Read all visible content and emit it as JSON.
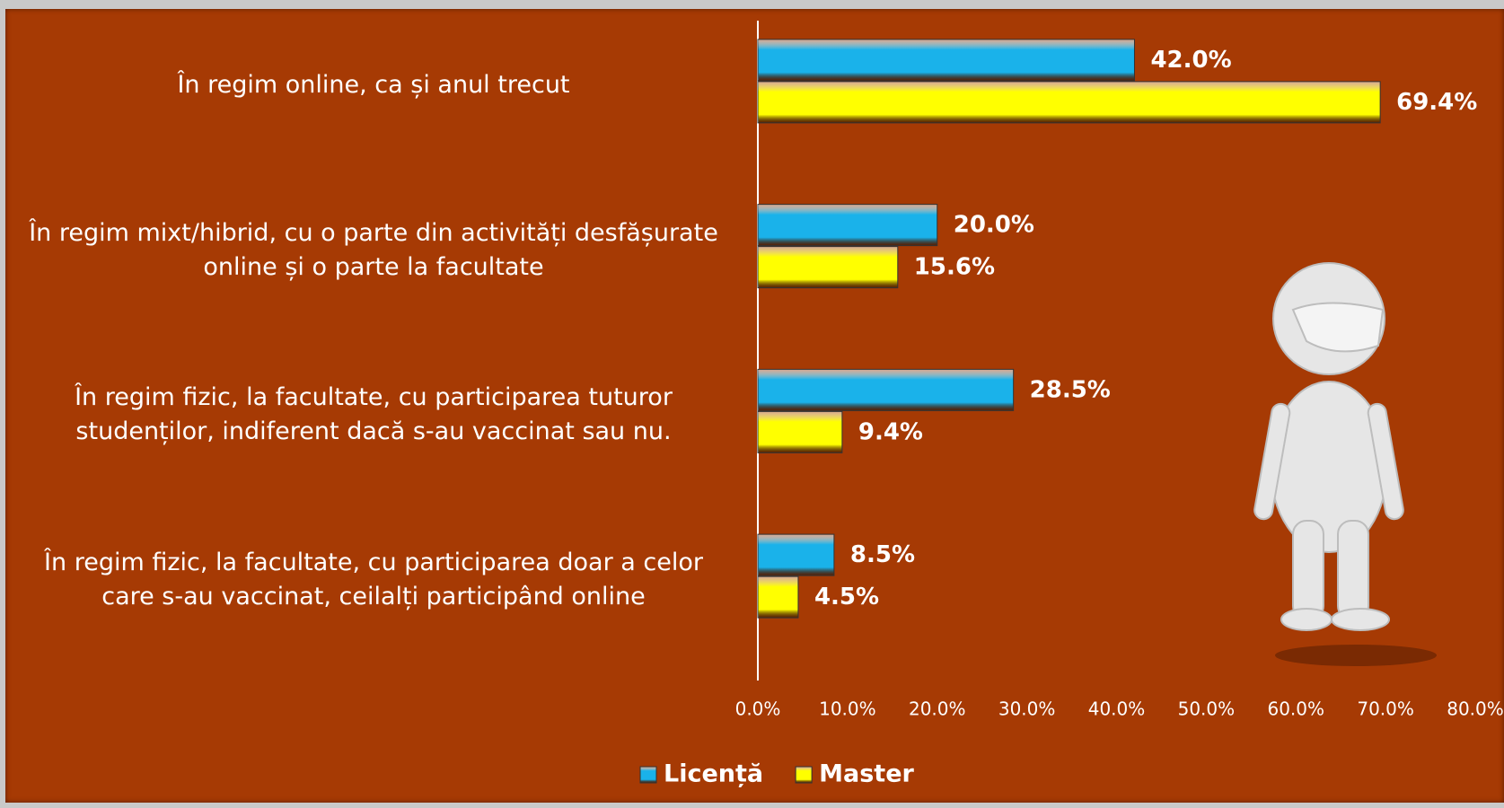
{
  "chart_data": {
    "type": "bar",
    "orientation": "horizontal",
    "categories": [
      "În regim online, ca și anul trecut",
      "În regim mixt/hibrid, cu o parte din activități desfășurate online și o parte la facultate",
      "În regim fizic, la facultate, cu participarea tuturor studenților, indiferent dacă s-au vaccinat sau nu.",
      "În regim fizic, la facultate, cu participarea doar a celor care s-au vaccinat, ceilalți participând online"
    ],
    "series": [
      {
        "name": "Licență",
        "color": "#1ab2ea",
        "values": [
          42.0,
          20.0,
          28.5,
          8.5
        ],
        "value_labels": [
          "42.0%",
          "20.0%",
          "28.5%",
          "8.5%"
        ]
      },
      {
        "name": "Master",
        "color": "#ffff00",
        "values": [
          69.4,
          15.6,
          9.4,
          4.5
        ],
        "value_labels": [
          "69.4%",
          "15.6%",
          "9.4%",
          "4.5%"
        ]
      }
    ],
    "xlim": [
      0,
      80
    ],
    "xticks": [
      {
        "value": 0,
        "label": "0.0%"
      },
      {
        "value": 10,
        "label": "10.0%"
      },
      {
        "value": 20,
        "label": "20.0%"
      },
      {
        "value": 30,
        "label": "30.0%"
      },
      {
        "value": 40,
        "label": "40.0%"
      },
      {
        "value": 50,
        "label": "50.0%"
      },
      {
        "value": 60,
        "label": "60.0%"
      },
      {
        "value": 70,
        "label": "70.0%"
      },
      {
        "value": 80,
        "label": "80.0%"
      }
    ],
    "legend": "bottom"
  }
}
